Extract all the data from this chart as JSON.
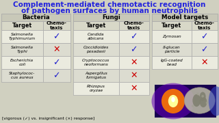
{
  "title_line1": "Complement-mediated chemotactic recognition",
  "title_line2": "of pathogen surfaces by human neutrophils",
  "title_color": "#2222dd",
  "bg_color": "#d0d0c0",
  "bacteria": [
    {
      "target": "Salmonella\nTyphimurium",
      "chemo": true
    },
    {
      "target": "Salmonella\nTyphi",
      "chemo": false
    },
    {
      "target": "Escherichia\ncoli",
      "chemo": true
    },
    {
      "target": "Staphylococ-\ncus aureus",
      "chemo": true
    }
  ],
  "fungi": [
    {
      "target": "Candida\nalbicans",
      "chemo": true
    },
    {
      "target": "Coccidioides\nposadasii",
      "chemo": true
    },
    {
      "target": "Cryptococcus\nneoformans",
      "chemo": false
    },
    {
      "target": "Aspergillus\nfumigatus",
      "chemo": false
    },
    {
      "target": "Rhizopus\noryzae",
      "chemo": false
    }
  ],
  "model_targets": [
    {
      "target": "Zymosan",
      "chemo": true
    },
    {
      "target": "ß-glucan\nparticle",
      "chemo": true
    },
    {
      "target": "IgG-coated\nbead",
      "chemo": false
    }
  ],
  "footer": "[vigorous (✓) vs. insignificant (×) response]",
  "check_color": "#2222cc",
  "cross_color": "#cc0000",
  "row_bg_even": "#ebebdf",
  "row_bg_odd": "#dcdcd0",
  "sec_header_bg": "#c8c8b8",
  "col_header_bg": "#d8d8c8",
  "grid_color": "#aaaaaa"
}
